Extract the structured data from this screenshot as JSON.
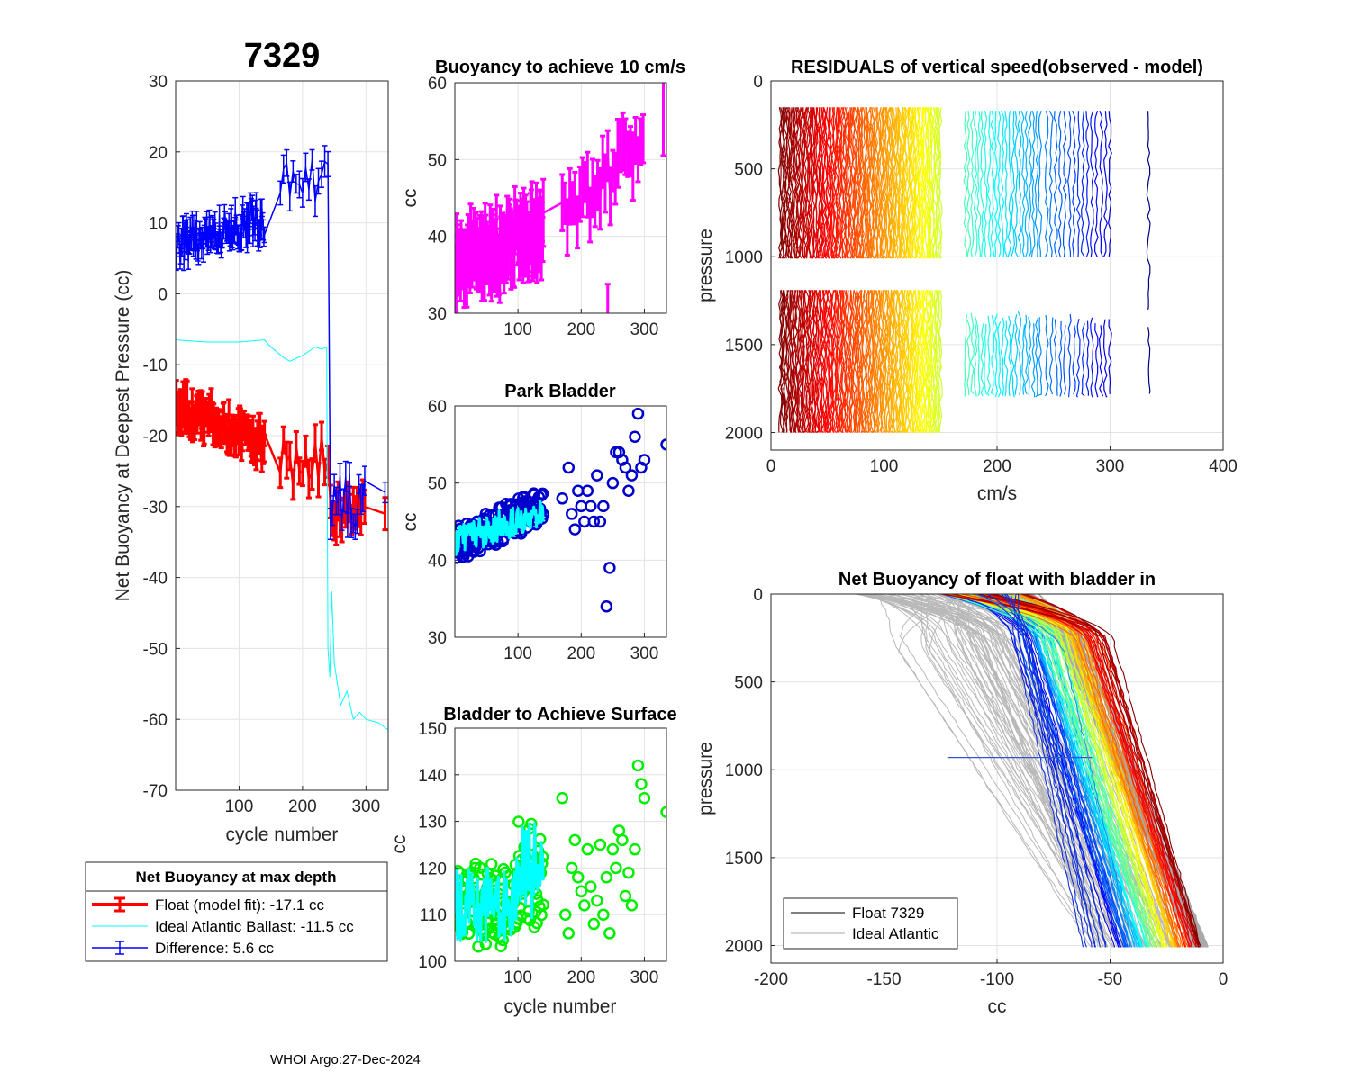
{
  "figure": {
    "float_id": "7329",
    "footer": "WHOI Argo:27-Dec-2024",
    "colors": {
      "red": "#ff0000",
      "cyan": "#00ffff",
      "blue": "#0000ff",
      "magenta": "#ff00ff",
      "green": "#00ff00",
      "gray": "#aaaaaa"
    }
  },
  "chart_data": [
    {
      "id": "net_buoyancy",
      "type": "line",
      "title": "7329",
      "xlabel": "cycle number",
      "ylabel": "Net Buoyancy at Deepest Pressure (cc)",
      "xlim": [
        0,
        335
      ],
      "ylim": [
        -70,
        30
      ],
      "xticks": [
        100,
        200,
        300
      ],
      "yticks": [
        30,
        20,
        10,
        0,
        -10,
        -20,
        -30,
        -40,
        -50,
        -60,
        -70
      ],
      "series": [
        {
          "name": "Float (model fit)",
          "color": "#ff0000",
          "note": "approx -10 to -20 cc over cycles 1-140, -22 near 170-240, about -30 to -33 after 250"
        },
        {
          "name": "Ideal Atlantic Ballast",
          "color": "#00ffff",
          "x": [
            1,
            50,
            100,
            140,
            150,
            170,
            180,
            200,
            220,
            230,
            238,
            240,
            243,
            246,
            250,
            260,
            270,
            280,
            290,
            300,
            320,
            335
          ],
          "values": [
            -6.5,
            -6.8,
            -6.8,
            -6.5,
            -7.5,
            -9,
            -9.5,
            -8.7,
            -7.5,
            -7.8,
            -7.5,
            -50,
            -54,
            -42,
            -52,
            -58,
            -56,
            -60,
            -59,
            -60,
            -60.5,
            -61.5
          ]
        },
        {
          "name": "Difference",
          "color": "#0000ff",
          "note": "approx 5-10 cc over cycles 1-140, 12-18 near 170-240, drops to about -25 to -33 after 250"
        }
      ],
      "legend": {
        "title": "Net Buoyancy at max depth",
        "entries": [
          "Float (model fit): -17.1 cc",
          "Ideal Atlantic Ballast: -11.5 cc",
          "Difference:   5.6 cc"
        ]
      }
    },
    {
      "id": "buoyancy_10cms",
      "type": "line",
      "title": "Buoyancy to achieve 10 cm/s",
      "xlabel": "",
      "ylabel": "cc",
      "xlim": [
        0,
        335
      ],
      "ylim": [
        30,
        60
      ],
      "xticks": [
        100,
        200,
        300
      ],
      "yticks": [
        60,
        50,
        40,
        30
      ],
      "series": [
        {
          "name": "buoyancy",
          "color": "#ff00ff",
          "note": "approx 37 cc at start rising to about 52 cc by cycle 300, isolated points near 30 (cycle 240) and 55 (cycle 330)"
        }
      ]
    },
    {
      "id": "park_bladder",
      "type": "scatter",
      "title": "Park Bladder",
      "xlabel": "",
      "ylabel": "cc",
      "xlim": [
        0,
        335
      ],
      "ylim": [
        30,
        60
      ],
      "xticks": [
        100,
        200,
        300
      ],
      "yticks": [
        60,
        50,
        40,
        30
      ],
      "series": [
        {
          "name": "park bladder",
          "color": "#0000cc",
          "x": [
            170,
            180,
            185,
            190,
            195,
            200,
            205,
            210,
            215,
            220,
            225,
            230,
            235,
            240,
            245,
            250,
            255,
            260,
            265,
            270,
            275,
            280,
            285,
            290,
            295,
            300,
            335
          ],
          "values": [
            48,
            52,
            46,
            44,
            49,
            47,
            45,
            49,
            47,
            45,
            51,
            45,
            47,
            34,
            39,
            50,
            54,
            54,
            53,
            52,
            49,
            51,
            56,
            59,
            52,
            53,
            55
          ]
        },
        {
          "name": "park bladder (early cycles)",
          "color": "#0000cc",
          "note": "dense cluster approx 41 to 48 cc over cycles 1-140"
        },
        {
          "name": "park bladder line",
          "color": "#00ffff",
          "note": "approx 41 rising to 46 cc over cycles 1-140"
        }
      ]
    },
    {
      "id": "bladder_surface",
      "type": "scatter",
      "title": "Bladder to Achieve Surface",
      "xlabel": "cycle number",
      "ylabel": "cc",
      "xlim": [
        0,
        335
      ],
      "ylim": [
        100,
        150
      ],
      "xticks": [
        100,
        200,
        300
      ],
      "yticks": [
        150,
        140,
        130,
        120,
        110,
        100
      ],
      "series": [
        {
          "name": "bladder surface",
          "color": "#00ee00",
          "x": [
            170,
            175,
            180,
            185,
            190,
            195,
            200,
            205,
            210,
            215,
            220,
            225,
            230,
            235,
            240,
            245,
            250,
            255,
            260,
            265,
            270,
            275,
            280,
            285,
            290,
            295,
            300,
            335
          ],
          "values": [
            135,
            110,
            106,
            120,
            126,
            118,
            115,
            112,
            124,
            116,
            108,
            113,
            125,
            110,
            118,
            106,
            124,
            120,
            128,
            126,
            114,
            119,
            112,
            124,
            142,
            138,
            135,
            132
          ]
        },
        {
          "name": "bladder surface (early cycles)",
          "color": "#00ee00",
          "note": "dense cluster approx 101 to 130 cc over cycles 1-140"
        },
        {
          "name": "bladder surface line",
          "color": "#00ffff",
          "note": "approx 103 to 136 cc over cycles 1-140"
        }
      ]
    },
    {
      "id": "residuals",
      "type": "line",
      "title": "RESIDUALS of vertical speed(observed - model)",
      "xlabel": "cm/s",
      "ylabel": "pressure",
      "xlim": [
        0,
        400
      ],
      "ylim": [
        2100,
        0
      ],
      "xticks": [
        0,
        100,
        200,
        300,
        400
      ],
      "yticks": [
        0,
        500,
        1000,
        1500,
        2000
      ],
      "series": [
        {
          "name": "profiles",
          "note": "one vertical trace per cycle offset by cycle number, pressure 150-1000 and 1200-2000 dbar, colored red to blue"
        }
      ]
    },
    {
      "id": "net_buoyancy_bladder_in",
      "type": "line",
      "title": "Net Buoyancy of float with bladder in",
      "xlabel": "cc",
      "ylabel": "pressure",
      "xlim": [
        -200,
        0
      ],
      "ylim": [
        2100,
        0
      ],
      "xticks": [
        -200,
        -150,
        -100,
        -50,
        0
      ],
      "yticks": [
        0,
        500,
        1000,
        1500,
        2000
      ],
      "series": [
        {
          "name": "Float 7329",
          "color": "#000000"
        },
        {
          "name": "Ideal Atlantic",
          "color": "#aaaaaa"
        }
      ],
      "legend": {
        "entries": [
          "Float 7329",
          "Ideal Atlantic"
        ]
      }
    }
  ]
}
